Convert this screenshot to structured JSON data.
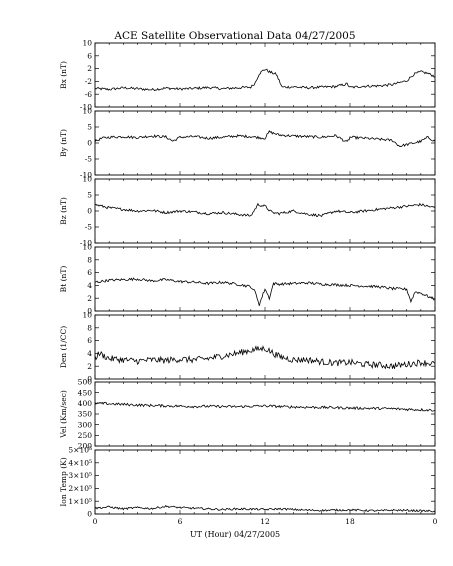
{
  "title": "ACE Satellite Observational Data   04/27/2005",
  "chart_data": {
    "type": "line",
    "title": "ACE Satellite Observational Data   04/27/2005",
    "xlabel": "UT (Hour)   04/27/2005",
    "x_ticks": [
      "0",
      "6",
      "12",
      "18",
      "0"
    ],
    "xlim": [
      0,
      24
    ],
    "panels": [
      {
        "ylabel": "Bx (nT)",
        "ylim": [
          -10,
          10
        ],
        "y_ticks": [
          {
            "v": 10,
            "t": "10"
          },
          {
            "v": 6,
            "t": "6"
          },
          {
            "v": 2,
            "t": "2"
          },
          {
            "v": -2,
            "t": "-2"
          },
          {
            "v": -6,
            "t": "-6"
          },
          {
            "v": -10,
            "t": "-10"
          }
        ],
        "series": [
          {
            "x": [
              0,
              1,
              2,
              3,
              4,
              5,
              6,
              7,
              8,
              9,
              10,
              11,
              11.3,
              11.6,
              12,
              12.4,
              12.8,
              13.2,
              14,
              15,
              16,
              17,
              17.8,
              18,
              18.5,
              19,
              20,
              21,
              22,
              22.5,
              23,
              23.5,
              24
            ],
            "y": [
              -4.2,
              -4.5,
              -4.0,
              -4.3,
              -4.6,
              -4.1,
              -4.4,
              -4.2,
              -3.9,
              -4.3,
              -4.0,
              -3.8,
              -2.5,
              0.5,
              1.8,
              0.8,
              0.2,
              -3.8,
              -3.7,
              -4.0,
              -3.8,
              -3.6,
              -2.8,
              -3.9,
              -3.7,
              -3.5,
              -3.4,
              -3.0,
              -1.8,
              0.2,
              1.0,
              0.5,
              -0.5
            ]
          }
        ]
      },
      {
        "ylabel": "By (nT)",
        "ylim": [
          -10,
          10
        ],
        "y_ticks": [
          {
            "v": 10,
            "t": "10"
          },
          {
            "v": 5,
            "t": "5"
          },
          {
            "v": 0,
            "t": "0"
          },
          {
            "v": -5,
            "t": "-5"
          },
          {
            "v": -10,
            "t": "-10"
          }
        ],
        "series": [
          {
            "x": [
              0,
              0.5,
              1,
              2,
              3,
              4,
              5,
              5.5,
              6,
              7,
              8,
              9,
              10,
              11,
              12,
              12.3,
              13,
              14,
              15,
              16,
              17,
              17.8,
              18,
              19,
              20,
              21,
              21.5,
              22,
              23,
              23.5,
              24
            ],
            "y": [
              0.5,
              1.5,
              1.8,
              2.0,
              1.7,
              2.2,
              1.9,
              0.6,
              1.8,
              2.0,
              1.5,
              1.8,
              2.2,
              2.0,
              1.5,
              3.5,
              2.5,
              2.2,
              2.0,
              1.8,
              2.3,
              0.2,
              1.8,
              1.5,
              1.2,
              0.8,
              -1.0,
              -0.5,
              0.5,
              1.8,
              0.5
            ]
          }
        ]
      },
      {
        "ylabel": "Bz (nT)",
        "ylim": [
          -10,
          10
        ],
        "y_ticks": [
          {
            "v": 10,
            "t": "10"
          },
          {
            "v": 5,
            "t": "5"
          },
          {
            "v": 0,
            "t": "0"
          },
          {
            "v": -5,
            "t": "-5"
          },
          {
            "v": -10,
            "t": "-10"
          }
        ],
        "series": [
          {
            "x": [
              0,
              1,
              2,
              3,
              4,
              5,
              6,
              7,
              8,
              9,
              10,
              11,
              11.5,
              12,
              12.5,
              13,
              14,
              15,
              16,
              17,
              18,
              19,
              20,
              21,
              22,
              23,
              24
            ],
            "y": [
              2.0,
              1.0,
              0.5,
              0.0,
              0.2,
              -0.5,
              0.0,
              -0.3,
              -0.8,
              -0.5,
              -1.0,
              -1.5,
              2.0,
              1.5,
              -0.5,
              -0.8,
              0.0,
              -1.0,
              -1.5,
              0.0,
              -0.5,
              0.0,
              0.5,
              1.0,
              1.5,
              2.0,
              1.0
            ]
          }
        ]
      },
      {
        "ylabel": "Bt (nT)",
        "ylim": [
          0,
          10
        ],
        "y_ticks": [
          {
            "v": 10,
            "t": "10"
          },
          {
            "v": 8,
            "t": "8"
          },
          {
            "v": 6,
            "t": "6"
          },
          {
            "v": 4,
            "t": "4"
          },
          {
            "v": 2,
            "t": "2"
          },
          {
            "v": 0,
            "t": "0"
          }
        ],
        "series": [
          {
            "x": [
              0,
              1,
              2,
              3,
              4,
              5,
              6,
              7,
              8,
              9,
              10,
              11,
              11.3,
              11.6,
              12,
              12.3,
              12.6,
              13,
              14,
              15,
              16,
              17,
              18,
              19,
              20,
              21,
              22,
              22.3,
              22.6,
              23,
              24
            ],
            "y": [
              4.5,
              4.8,
              4.9,
              5.0,
              4.7,
              4.9,
              4.6,
              4.5,
              4.3,
              4.5,
              4.2,
              3.8,
              3.0,
              1.0,
              3.5,
              2.0,
              4.3,
              4.2,
              4.3,
              4.4,
              4.2,
              4.1,
              4.0,
              3.9,
              3.8,
              3.5,
              3.4,
              1.5,
              3.0,
              2.8,
              1.8
            ]
          }
        ]
      },
      {
        "ylabel": "Den (1/CC)",
        "ylim": [
          0,
          10
        ],
        "y_ticks": [
          {
            "v": 10,
            "t": "10"
          },
          {
            "v": 8,
            "t": "8"
          },
          {
            "v": 6,
            "t": "6"
          },
          {
            "v": 4,
            "t": "4"
          },
          {
            "v": 2,
            "t": "2"
          },
          {
            "v": 0,
            "t": "0"
          }
        ],
        "series": [
          {
            "x": [
              0,
              0.3,
              1,
              2,
              3,
              4,
              5,
              6,
              7,
              8,
              9,
              10,
              11,
              12,
              13,
              14,
              15,
              16,
              17,
              18,
              19,
              20,
              21,
              22,
              23,
              24
            ],
            "y": [
              3.3,
              4.0,
              3.2,
              3.0,
              2.8,
              3.0,
              2.9,
              3.1,
              3.0,
              3.2,
              3.6,
              4.0,
              4.5,
              4.8,
              3.5,
              3.0,
              3.0,
              2.7,
              2.5,
              2.6,
              2.3,
              2.2,
              2.0,
              2.3,
              2.6,
              2.4
            ]
          }
        ]
      },
      {
        "ylabel": "Vel (Km/sec)",
        "ylim": [
          200,
          500
        ],
        "y_ticks": [
          {
            "v": 500,
            "t": "500"
          },
          {
            "v": 450,
            "t": "450"
          },
          {
            "v": 400,
            "t": "400"
          },
          {
            "v": 350,
            "t": "350"
          },
          {
            "v": 300,
            "t": "300"
          },
          {
            "v": 250,
            "t": "250"
          },
          {
            "v": 200,
            "t": "200"
          }
        ],
        "series": [
          {
            "x": [
              0,
              1,
              2,
              3,
              4,
              5,
              6,
              7,
              8,
              9,
              10,
              11,
              12,
              13,
              14,
              15,
              16,
              17,
              18,
              19,
              20,
              21,
              22,
              23,
              24
            ],
            "y": [
              400,
              398,
              395,
              392,
              390,
              388,
              387,
              385,
              386,
              385,
              384,
              386,
              388,
              385,
              383,
              382,
              381,
              380,
              378,
              377,
              376,
              375,
              372,
              370,
              368
            ]
          }
        ]
      },
      {
        "ylabel": "Ion Temp (K)",
        "ylim": [
          0,
          500000
        ],
        "y_ticks": [
          {
            "v": 500000,
            "t": "5×10⁵"
          },
          {
            "v": 400000,
            "t": "4×10⁵"
          },
          {
            "v": 300000,
            "t": "3×10⁵"
          },
          {
            "v": 200000,
            "t": "2×10⁵"
          },
          {
            "v": 100000,
            "t": "1×10⁵"
          },
          {
            "v": 0,
            "t": "0"
          }
        ],
        "series": [
          {
            "x": [
              0,
              1,
              2,
              3,
              4,
              5,
              6,
              7,
              8,
              9,
              10,
              11,
              12,
              13,
              14,
              15,
              16,
              17,
              18,
              19,
              20,
              21,
              22,
              23,
              24
            ],
            "y": [
              45000,
              55000,
              40000,
              50000,
              42000,
              60000,
              50000,
              45000,
              40000,
              35000,
              40000,
              38000,
              35000,
              40000,
              35000,
              30000,
              28000,
              30000,
              32000,
              28000,
              25000,
              30000,
              28000,
              25000,
              22000
            ]
          }
        ]
      }
    ]
  }
}
